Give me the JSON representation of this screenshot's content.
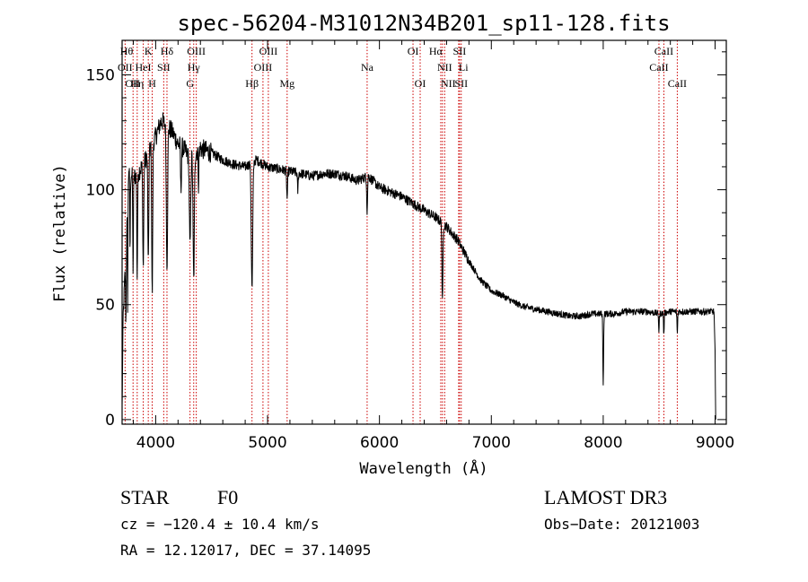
{
  "chart_data": {
    "type": "line",
    "title": "spec-56204-M31012N34B201_sp11-128.fits",
    "xlabel": "Wavelength (Å)",
    "ylabel": "Flux (relative)",
    "xlim": [
      3700,
      9100
    ],
    "ylim": [
      -2,
      165
    ],
    "x_ticks": [
      4000,
      5000,
      6000,
      7000,
      8000,
      9000
    ],
    "y_ticks": [
      0,
      50,
      100,
      150
    ],
    "x_minor_step": 200,
    "y_minor_step": 10,
    "series": [
      {
        "name": "flux",
        "color": "#000000",
        "envelope": [
          [
            3700,
            5
          ],
          [
            3710,
            45
          ],
          [
            3740,
            80
          ],
          [
            3760,
            110
          ],
          [
            3800,
            105
          ],
          [
            3850,
            108
          ],
          [
            3900,
            112
          ],
          [
            3950,
            118
          ],
          [
            4000,
            123
          ],
          [
            4050,
            130
          ],
          [
            4100,
            128
          ],
          [
            4150,
            125
          ],
          [
            4200,
            120
          ],
          [
            4250,
            118
          ],
          [
            4300,
            114
          ],
          [
            4400,
            118
          ],
          [
            4500,
            116
          ],
          [
            4600,
            113
          ],
          [
            4700,
            111
          ],
          [
            4800,
            110
          ],
          [
            4900,
            113
          ],
          [
            5000,
            110
          ],
          [
            5100,
            109
          ],
          [
            5200,
            108
          ],
          [
            5300,
            107
          ],
          [
            5400,
            106
          ],
          [
            5500,
            107
          ],
          [
            5600,
            107
          ],
          [
            5700,
            106
          ],
          [
            5800,
            104
          ],
          [
            5900,
            106
          ],
          [
            6000,
            101
          ],
          [
            6100,
            99
          ],
          [
            6200,
            97
          ],
          [
            6300,
            94
          ],
          [
            6400,
            91
          ],
          [
            6500,
            88
          ],
          [
            6600,
            84
          ],
          [
            6700,
            78
          ],
          [
            6800,
            69
          ],
          [
            6900,
            61
          ],
          [
            7000,
            56
          ],
          [
            7100,
            54
          ],
          [
            7200,
            51
          ],
          [
            7300,
            49
          ],
          [
            7400,
            48
          ],
          [
            7500,
            47
          ],
          [
            7600,
            46
          ],
          [
            7700,
            45
          ],
          [
            7800,
            45
          ],
          [
            7900,
            46
          ],
          [
            8000,
            46
          ],
          [
            8100,
            46
          ],
          [
            8200,
            47
          ],
          [
            8300,
            47
          ],
          [
            8400,
            47
          ],
          [
            8500,
            46
          ],
          [
            8600,
            47
          ],
          [
            8700,
            47
          ],
          [
            8800,
            47
          ],
          [
            8900,
            47
          ],
          [
            8990,
            47
          ],
          [
            9000,
            30
          ],
          [
            9005,
            0
          ]
        ],
        "absorption_features": [
          [
            3734,
            30,
            4
          ],
          [
            3750,
            45,
            3
          ],
          [
            3771,
            35,
            4
          ],
          [
            3798,
            40,
            4
          ],
          [
            3835,
            45,
            5
          ],
          [
            3889,
            45,
            6
          ],
          [
            3934,
            50,
            6
          ],
          [
            3969,
            65,
            6
          ],
          [
            4101,
            60,
            8
          ],
          [
            4226,
            20,
            5
          ],
          [
            4307,
            40,
            8
          ],
          [
            4340,
            55,
            8
          ],
          [
            4383,
            15,
            4
          ],
          [
            4861,
            55,
            9
          ],
          [
            5175,
            12,
            6
          ],
          [
            5270,
            8,
            5
          ],
          [
            5890,
            15,
            5
          ],
          [
            6563,
            35,
            6
          ],
          [
            8000,
            30,
            5
          ],
          [
            8498,
            8,
            4
          ],
          [
            8542,
            10,
            4
          ],
          [
            8662,
            10,
            4
          ]
        ]
      }
    ],
    "line_markers": [
      {
        "label": "Hθ",
        "x": 3798,
        "row": 0,
        "anchor": "end"
      },
      {
        "label": "K",
        "x": 3934,
        "row": 0,
        "anchor": "middle"
      },
      {
        "label": "Hδ",
        "x": 4101,
        "row": 0,
        "anchor": "middle"
      },
      {
        "label": "OIII",
        "x": 4363,
        "row": 0,
        "anchor": "middle"
      },
      {
        "label": "OIII",
        "x": 5007,
        "row": 0,
        "anchor": "middle"
      },
      {
        "label": "OI",
        "x": 6300,
        "row": 0,
        "anchor": "middle"
      },
      {
        "label": "Hα",
        "x": 6563,
        "row": 0,
        "anchor": "end"
      },
      {
        "label": "SII",
        "x": 6716,
        "row": 0,
        "anchor": "middle"
      },
      {
        "label": "CaII",
        "x": 8542,
        "row": 0,
        "anchor": "middle"
      },
      {
        "label": "OII",
        "x": 3727,
        "row": 1,
        "anchor": "middle"
      },
      {
        "label": "HeI",
        "x": 3889,
        "row": 1,
        "anchor": "middle"
      },
      {
        "label": "SII",
        "x": 4072,
        "row": 1,
        "anchor": "middle"
      },
      {
        "label": "Hγ",
        "x": 4340,
        "row": 1,
        "anchor": "middle"
      },
      {
        "label": "OIII",
        "x": 4959,
        "row": 1,
        "anchor": "middle"
      },
      {
        "label": "Na",
        "x": 5890,
        "row": 1,
        "anchor": "middle"
      },
      {
        "label": "NII",
        "x": 6583,
        "row": 1,
        "anchor": "middle"
      },
      {
        "label": "Li",
        "x": 6708,
        "row": 1,
        "anchor": "start"
      },
      {
        "label": "CaII",
        "x": 8498,
        "row": 1,
        "anchor": "middle"
      },
      {
        "label": "OII",
        "x": 3727,
        "row": 2,
        "anchor": "start"
      },
      {
        "label": "Hη",
        "x": 3835,
        "row": 2,
        "anchor": "middle"
      },
      {
        "label": "H",
        "x": 3969,
        "row": 2,
        "anchor": "middle"
      },
      {
        "label": "G",
        "x": 4307,
        "row": 2,
        "anchor": "middle"
      },
      {
        "label": "Hβ",
        "x": 4861,
        "row": 2,
        "anchor": "middle"
      },
      {
        "label": "Mg",
        "x": 5175,
        "row": 2,
        "anchor": "middle"
      },
      {
        "label": "OI",
        "x": 6364,
        "row": 2,
        "anchor": "middle"
      },
      {
        "label": "NII",
        "x": 6548,
        "row": 2,
        "anchor": "start"
      },
      {
        "label": "SII",
        "x": 6731,
        "row": 2,
        "anchor": "middle"
      },
      {
        "label": "CaII",
        "x": 8662,
        "row": 2,
        "anchor": "middle"
      }
    ],
    "marker_line_color": "#cc0000"
  },
  "info": {
    "object_class": "STAR",
    "subclass": "F0",
    "survey": "LAMOST DR3",
    "cz": "cz = −120.4 ± 10.4 km/s",
    "obs_date": "Obs−Date: 20121003",
    "coords": "RA =  12.12017, DEC =  37.14095"
  }
}
